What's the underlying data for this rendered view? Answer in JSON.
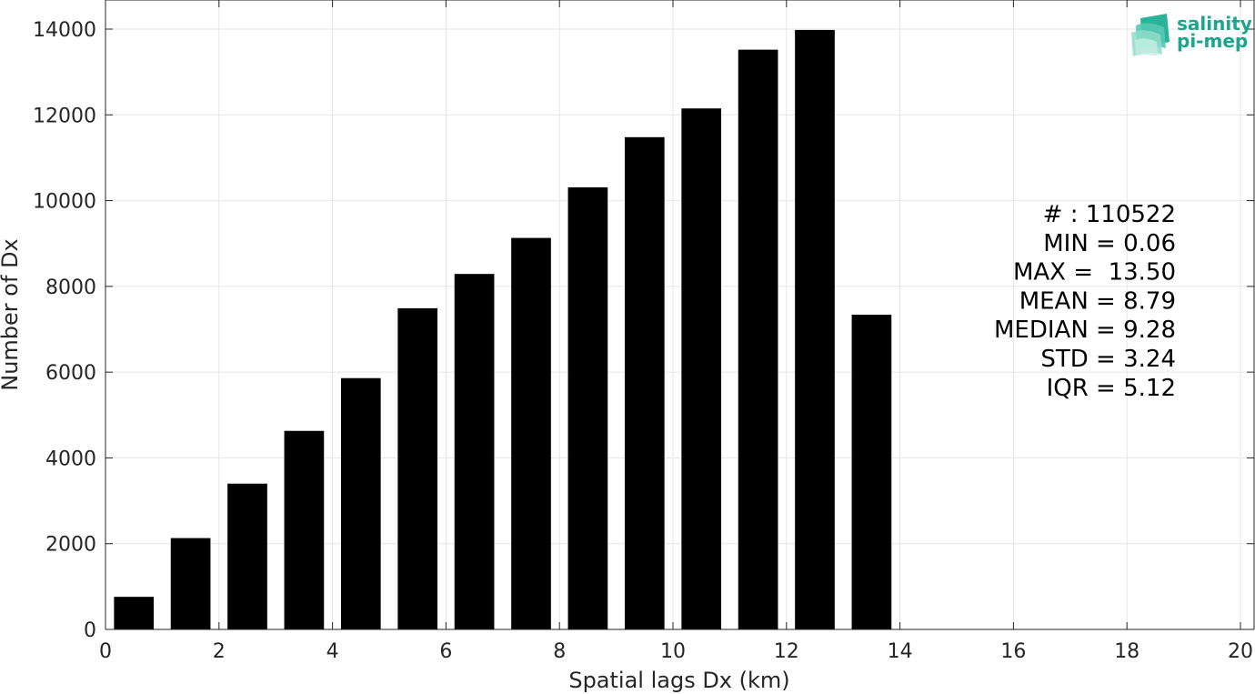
{
  "chart_data": {
    "type": "bar",
    "xlabel": "Spatial lags Dx (km)",
    "ylabel": "Number of Dx",
    "xlim": [
      0,
      20
    ],
    "ylim": [
      0,
      14000
    ],
    "grid": true,
    "xticks": [
      0,
      2,
      4,
      6,
      8,
      10,
      12,
      14,
      16,
      18,
      20
    ],
    "yticks": [
      0,
      2000,
      4000,
      6000,
      8000,
      10000,
      12000,
      14000
    ],
    "bar_color": "#000000",
    "grid_color": "#e6e6e6",
    "x": [
      0.5,
      1.5,
      2.5,
      3.5,
      4.5,
      5.5,
      6.5,
      7.5,
      8.5,
      9.5,
      10.5,
      11.5,
      12.5,
      13.5
    ],
    "values": [
      760,
      2130,
      3400,
      4630,
      5860,
      7490,
      8290,
      9130,
      10310,
      11480,
      12150,
      13520,
      13980,
      7340
    ],
    "bar_width": 0.7,
    "annotation": {
      "lines": [
        "# : 110522",
        "MIN = 0.06",
        "MAX =  13.50",
        "MEAN = 8.79",
        "MEDIAN = 9.28",
        "STD = 3.24",
        "IQR = 5.12"
      ],
      "placement": "right"
    }
  },
  "logo": {
    "line1": "salinity",
    "line2": "pi-mep",
    "color": "#1aa58c",
    "icon": "waves-logo-icon"
  }
}
